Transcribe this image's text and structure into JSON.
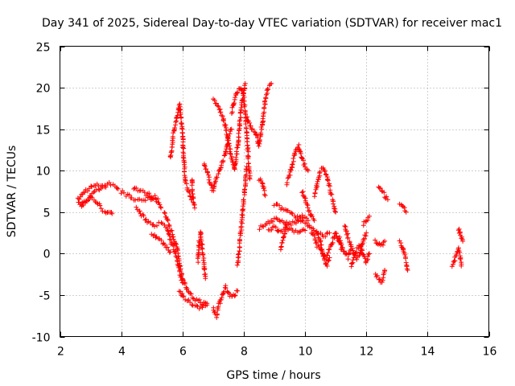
{
  "chart_data": {
    "type": "scatter",
    "title": "Day 341 of 2025, Sidereal Day-to-day VTEC variation (SDTVAR) for receiver mac1",
    "xlabel": "GPS time / hours",
    "ylabel": "SDTVAR / TECUs",
    "xlim": [
      2,
      16
    ],
    "ylim": [
      -10,
      25
    ],
    "xticks": [
      2,
      4,
      6,
      8,
      10,
      12,
      14,
      16
    ],
    "yticks": [
      -10,
      -5,
      0,
      5,
      10,
      15,
      20,
      25
    ],
    "grid": true,
    "marker": "+",
    "color": "#ff0000",
    "segments": [
      [
        [
          2.6,
          6.5
        ],
        [
          2.8,
          7.5
        ],
        [
          3.0,
          8.0
        ],
        [
          3.2,
          8.2
        ],
        [
          3.4,
          8.3
        ],
        [
          3.6,
          8.4
        ],
        [
          3.8,
          8.3
        ],
        [
          3.9,
          7.8
        ]
      ],
      [
        [
          2.6,
          6.0
        ],
        [
          2.8,
          6.3
        ],
        [
          3.0,
          6.8
        ],
        [
          3.2,
          6.2
        ],
        [
          3.4,
          5.3
        ],
        [
          3.6,
          4.8
        ],
        [
          3.7,
          4.8
        ]
      ],
      [
        [
          2.7,
          5.8
        ],
        [
          2.9,
          6.5
        ],
        [
          3.1,
          7.2
        ],
        [
          3.3,
          7.8
        ],
        [
          3.5,
          8.0
        ]
      ],
      [
        [
          4.0,
          7.5
        ],
        [
          4.2,
          7.0
        ],
        [
          4.4,
          6.5
        ],
        [
          4.6,
          6.5
        ],
        [
          4.8,
          6.5
        ],
        [
          5.0,
          6.7
        ],
        [
          5.2,
          6.3
        ],
        [
          5.3,
          5.5
        ]
      ],
      [
        [
          4.4,
          8.0
        ],
        [
          4.6,
          7.6
        ],
        [
          4.8,
          7.2
        ],
        [
          5.0,
          7.0
        ],
        [
          5.2,
          6.6
        ]
      ],
      [
        [
          4.5,
          5.5
        ],
        [
          4.7,
          4.5
        ],
        [
          4.9,
          3.8
        ],
        [
          5.1,
          3.5
        ],
        [
          5.3,
          3.6
        ],
        [
          5.5,
          3.0
        ],
        [
          5.6,
          1.5
        ],
        [
          5.7,
          0.8
        ],
        [
          5.8,
          -0.5
        ],
        [
          5.9,
          -2.0
        ],
        [
          6.0,
          -3.5
        ]
      ],
      [
        [
          5.0,
          2.5
        ],
        [
          5.2,
          1.8
        ],
        [
          5.4,
          1.2
        ],
        [
          5.6,
          0.2
        ]
      ],
      [
        [
          5.4,
          5.0
        ],
        [
          5.6,
          3.0
        ],
        [
          5.8,
          1.0
        ],
        [
          5.9,
          -1.0
        ],
        [
          6.0,
          -3.0
        ],
        [
          6.2,
          -4.8
        ],
        [
          6.4,
          -5.5
        ],
        [
          6.6,
          -5.8
        ],
        [
          6.8,
          -6.2
        ]
      ],
      [
        [
          5.6,
          11.5
        ],
        [
          5.65,
          12.5
        ],
        [
          5.7,
          14.5
        ],
        [
          5.8,
          16.0
        ],
        [
          5.9,
          18.0
        ],
        [
          6.0,
          14.5
        ],
        [
          6.05,
          11.0
        ],
        [
          6.1,
          8.5
        ],
        [
          6.2,
          7.5
        ],
        [
          6.3,
          6.5
        ]
      ],
      [
        [
          5.9,
          -4.5
        ],
        [
          6.0,
          -5.2
        ],
        [
          6.2,
          -5.8
        ],
        [
          6.4,
          -6.2
        ],
        [
          6.6,
          -6.5
        ],
        [
          6.8,
          -6.0
        ]
      ],
      [
        [
          6.3,
          9.0
        ],
        [
          6.35,
          6.5
        ],
        [
          6.4,
          5.5
        ]
      ],
      [
        [
          6.5,
          -1.0
        ],
        [
          6.55,
          1.5
        ],
        [
          6.6,
          2.5
        ],
        [
          6.65,
          0.5
        ],
        [
          6.7,
          -1.0
        ],
        [
          6.75,
          -3.0
        ]
      ],
      [
        [
          6.7,
          11.0
        ],
        [
          6.8,
          10.0
        ],
        [
          6.9,
          8.5
        ],
        [
          7.0,
          7.5
        ],
        [
          7.1,
          9.0
        ],
        [
          7.2,
          10.0
        ],
        [
          7.3,
          11.0
        ],
        [
          7.4,
          12.0
        ],
        [
          7.5,
          14.0
        ],
        [
          7.6,
          15.0
        ]
      ],
      [
        [
          7.0,
          -6.5
        ],
        [
          7.1,
          -7.5
        ],
        [
          7.2,
          -6.0
        ],
        [
          7.3,
          -5.0
        ],
        [
          7.4,
          -4.0
        ],
        [
          7.5,
          -4.8
        ],
        [
          7.6,
          -5.2
        ],
        [
          7.7,
          -5.0
        ],
        [
          7.8,
          -4.5
        ]
      ],
      [
        [
          7.0,
          18.5
        ],
        [
          7.2,
          17.5
        ],
        [
          7.4,
          15.5
        ],
        [
          7.5,
          13.5
        ],
        [
          7.6,
          11.5
        ],
        [
          7.7,
          10.0
        ],
        [
          7.8,
          13.0
        ],
        [
          7.9,
          17.0
        ],
        [
          8.0,
          19.5
        ],
        [
          8.05,
          20.5
        ]
      ],
      [
        [
          7.6,
          17.0
        ],
        [
          7.7,
          18.5
        ],
        [
          7.8,
          19.5
        ],
        [
          7.9,
          20.0
        ],
        [
          8.0,
          19.0
        ],
        [
          8.05,
          17.0
        ],
        [
          8.1,
          14.0
        ],
        [
          8.15,
          11.5
        ],
        [
          8.2,
          9.0
        ]
      ],
      [
        [
          7.8,
          -1.5
        ],
        [
          7.85,
          0.5
        ],
        [
          7.9,
          2.5
        ],
        [
          7.95,
          4.5
        ],
        [
          8.0,
          6.5
        ],
        [
          8.05,
          8.5
        ],
        [
          8.1,
          10.5
        ]
      ],
      [
        [
          8.1,
          16.5
        ],
        [
          8.2,
          15.5
        ],
        [
          8.3,
          15.0
        ],
        [
          8.4,
          14.5
        ],
        [
          8.5,
          13.0
        ],
        [
          8.6,
          15.5
        ],
        [
          8.7,
          18.5
        ],
        [
          8.8,
          20.0
        ],
        [
          8.9,
          20.5
        ]
      ],
      [
        [
          8.5,
          9.0
        ],
        [
          8.6,
          8.5
        ],
        [
          8.7,
          7.0
        ]
      ],
      [
        [
          8.5,
          3.0
        ],
        [
          8.7,
          3.5
        ],
        [
          8.9,
          4.0
        ],
        [
          9.1,
          4.2
        ],
        [
          9.3,
          3.8
        ],
        [
          9.5,
          3.5
        ],
        [
          9.7,
          3.8
        ],
        [
          9.9,
          4.5
        ],
        [
          10.1,
          4.0
        ]
      ],
      [
        [
          8.8,
          2.8
        ],
        [
          9.0,
          3.2
        ],
        [
          9.2,
          2.5
        ],
        [
          9.4,
          3.0
        ],
        [
          9.6,
          2.8
        ],
        [
          9.8,
          2.5
        ],
        [
          10.0,
          2.8
        ]
      ],
      [
        [
          9.0,
          6.0
        ],
        [
          9.2,
          5.5
        ],
        [
          9.4,
          5.2
        ],
        [
          9.6,
          4.8
        ],
        [
          9.8,
          4.2
        ],
        [
          10.0,
          3.8
        ],
        [
          10.2,
          3.0
        ],
        [
          10.4,
          2.5
        ],
        [
          10.6,
          2.0
        ],
        [
          10.8,
          2.5
        ]
      ],
      [
        [
          9.2,
          0.5
        ],
        [
          9.3,
          2.0
        ],
        [
          9.4,
          3.5
        ]
      ],
      [
        [
          9.4,
          8.5
        ],
        [
          9.5,
          9.5
        ],
        [
          9.6,
          11.0
        ],
        [
          9.7,
          12.5
        ],
        [
          9.8,
          13.0
        ],
        [
          9.9,
          11.5
        ],
        [
          10.0,
          10.5
        ],
        [
          10.1,
          10.0
        ]
      ],
      [
        [
          9.9,
          7.5
        ],
        [
          10.0,
          6.5
        ],
        [
          10.1,
          5.5
        ],
        [
          10.2,
          4.5
        ],
        [
          10.3,
          4.0
        ]
      ],
      [
        [
          10.2,
          2.5
        ],
        [
          10.3,
          2.0
        ],
        [
          10.4,
          1.0
        ],
        [
          10.5,
          0.5
        ],
        [
          10.6,
          0.0
        ],
        [
          10.7,
          -0.5
        ],
        [
          10.8,
          0.5
        ],
        [
          10.9,
          1.5
        ],
        [
          11.0,
          2.5
        ],
        [
          11.1,
          1.5
        ],
        [
          11.2,
          0.5
        ]
      ],
      [
        [
          10.3,
          7.0
        ],
        [
          10.4,
          8.5
        ],
        [
          10.5,
          10.0
        ],
        [
          10.6,
          10.5
        ],
        [
          10.7,
          9.5
        ],
        [
          10.8,
          8.0
        ],
        [
          10.9,
          6.5
        ],
        [
          11.0,
          5.0
        ]
      ],
      [
        [
          10.4,
          2.5
        ],
        [
          10.5,
          1.5
        ],
        [
          10.6,
          -0.5
        ],
        [
          10.7,
          -1.5
        ],
        [
          10.8,
          -0.5
        ]
      ],
      [
        [
          11.1,
          2.0
        ],
        [
          11.2,
          1.0
        ],
        [
          11.3,
          0.0
        ],
        [
          11.4,
          -0.5
        ],
        [
          11.5,
          0.5
        ]
      ],
      [
        [
          11.3,
          3.5
        ],
        [
          11.4,
          2.0
        ],
        [
          11.5,
          1.0
        ],
        [
          11.6,
          0.0
        ],
        [
          11.7,
          -0.5
        ],
        [
          11.8,
          0.0
        ],
        [
          11.9,
          1.5
        ],
        [
          12.0,
          2.5
        ]
      ],
      [
        [
          11.5,
          -1.5
        ],
        [
          11.6,
          -0.5
        ],
        [
          11.7,
          0.5
        ],
        [
          11.8,
          1.0
        ],
        [
          11.9,
          0.0
        ],
        [
          12.0,
          -1.0
        ],
        [
          12.1,
          0.0
        ]
      ],
      [
        [
          11.9,
          3.5
        ],
        [
          12.0,
          4.0
        ],
        [
          12.1,
          4.5
        ]
      ],
      [
        [
          12.3,
          1.5
        ],
        [
          12.4,
          1.0
        ],
        [
          12.5,
          1.0
        ],
        [
          12.6,
          1.5
        ]
      ],
      [
        [
          12.3,
          -2.5
        ],
        [
          12.4,
          -3.0
        ],
        [
          12.5,
          -3.5
        ],
        [
          12.6,
          -2.0
        ]
      ],
      [
        [
          12.4,
          8.0
        ],
        [
          12.5,
          7.5
        ],
        [
          12.6,
          7.0
        ],
        [
          12.7,
          6.5
        ]
      ],
      [
        [
          13.1,
          6.0
        ],
        [
          13.2,
          5.5
        ],
        [
          13.3,
          5.0
        ]
      ],
      [
        [
          13.1,
          1.5
        ],
        [
          13.2,
          0.5
        ],
        [
          13.3,
          -1.0
        ],
        [
          13.35,
          -2.0
        ]
      ],
      [
        [
          14.8,
          -1.5
        ],
        [
          14.9,
          -0.5
        ],
        [
          15.0,
          0.5
        ],
        [
          15.05,
          0.0
        ],
        [
          15.1,
          -1.5
        ]
      ],
      [
        [
          15.0,
          3.0
        ],
        [
          15.05,
          2.5
        ],
        [
          15.1,
          2.0
        ],
        [
          15.15,
          1.5
        ]
      ]
    ]
  }
}
